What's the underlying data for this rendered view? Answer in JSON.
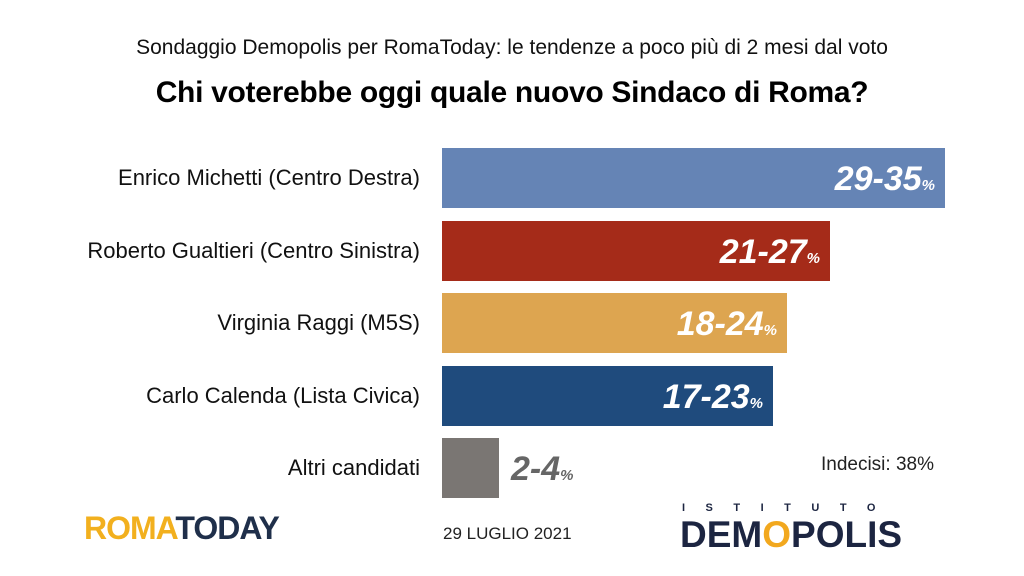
{
  "header": {
    "subtitle": "Sondaggio Demopolis per RomaToday: le tendenze a poco più di 2 mesi dal voto",
    "title": "Chi voterebbe oggi quale nuovo Sindaco di Roma?"
  },
  "chart_data": {
    "type": "bar",
    "orientation": "horizontal",
    "categories": [
      "Enrico Michetti (Centro Destra)",
      "Roberto Gualtieri (Centro Sinistra)",
      "Virginia Raggi (M5S)",
      "Carlo Calenda (Lista Civica)",
      "Altri candidati"
    ],
    "ranges": [
      [
        29,
        35
      ],
      [
        21,
        27
      ],
      [
        18,
        24
      ],
      [
        17,
        23
      ],
      [
        2,
        4
      ]
    ],
    "value_labels": [
      "29-35",
      "21-27",
      "18-24",
      "17-23",
      "2-4"
    ],
    "unit": "%",
    "colors": [
      "#6584b5",
      "#a52b19",
      "#dda550",
      "#1f4b7d",
      "#7a7673"
    ],
    "xlim": [
      0,
      35
    ],
    "grid": false,
    "legend": "none",
    "annotation": "Indecisi: 38%"
  },
  "footer": {
    "roma_part1": "ROMA",
    "roma_part2": "TODAY",
    "date": "29 LUGLIO 2021",
    "istituto": "ISTITUTO",
    "demopolis_1": "DEM",
    "demopolis_o": "O",
    "demopolis_2": "POLIS"
  }
}
